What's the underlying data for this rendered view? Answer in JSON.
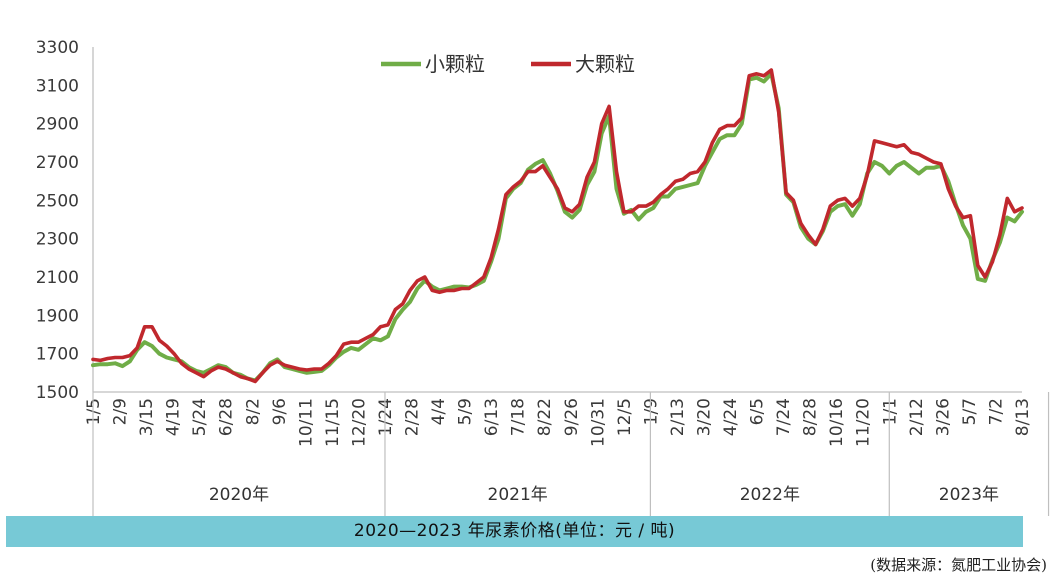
{
  "caption": "2020—2023 年尿素价格(单位：元 / 吨)",
  "source": "(数据来源：氮肥工业协会)",
  "chart_data": {
    "type": "line",
    "ylim": [
      1500,
      3300
    ],
    "yticks": [
      1500,
      1700,
      1900,
      2100,
      2300,
      2500,
      2700,
      2900,
      3100,
      3300
    ],
    "grid": false,
    "legend_position": "top",
    "x_tick_labels": [
      "1/5",
      "2/9",
      "3/15",
      "4/19",
      "5/24",
      "6/28",
      "8/2",
      "9/6",
      "10/11",
      "11/15",
      "12/20",
      "1/24",
      "2/28",
      "4/4",
      "5/9",
      "6/13",
      "7/18",
      "8/22",
      "9/26",
      "10/31",
      "12/5",
      "1/9",
      "2/13",
      "3/20",
      "4/24",
      "6/5",
      "7/24",
      "8/28",
      "10/16",
      "11/20",
      "1/1",
      "2/12",
      "3/26",
      "5/7",
      "7/2",
      "8/13"
    ],
    "year_groups": [
      {
        "label": "2020年"
      },
      {
        "label": "2021年"
      },
      {
        "label": "2022年"
      },
      {
        "label": "2023年"
      }
    ],
    "series": [
      {
        "name": "小颗粒",
        "color": "#70ad47",
        "values": [
          1640,
          1645,
          1645,
          1650,
          1635,
          1660,
          1720,
          1760,
          1740,
          1700,
          1680,
          1670,
          1660,
          1630,
          1610,
          1600,
          1620,
          1640,
          1630,
          1600,
          1590,
          1570,
          1560,
          1600,
          1650,
          1670,
          1630,
          1620,
          1610,
          1600,
          1605,
          1610,
          1640,
          1680,
          1710,
          1730,
          1720,
          1750,
          1780,
          1770,
          1790,
          1880,
          1930,
          1970,
          2040,
          2080,
          2050,
          2030,
          2040,
          2050,
          2050,
          2045,
          2060,
          2080,
          2180,
          2300,
          2510,
          2560,
          2590,
          2660,
          2690,
          2710,
          2640,
          2550,
          2440,
          2410,
          2450,
          2580,
          2650,
          2850,
          2940,
          2560,
          2430,
          2450,
          2400,
          2440,
          2460,
          2520,
          2520,
          2560,
          2570,
          2580,
          2590,
          2680,
          2750,
          2820,
          2840,
          2840,
          2900,
          3130,
          3140,
          3120,
          3160,
          2980,
          2530,
          2490,
          2360,
          2300,
          2270,
          2340,
          2440,
          2470,
          2480,
          2420,
          2480,
          2640,
          2700,
          2680,
          2640,
          2680,
          2700,
          2670,
          2640,
          2670,
          2670,
          2680,
          2600,
          2480,
          2370,
          2300,
          2090,
          2080,
          2190,
          2280,
          2410,
          2390,
          2440
        ]
      },
      {
        "name": "大颗粒",
        "color": "#c0282d",
        "values": [
          1670,
          1665,
          1675,
          1680,
          1680,
          1690,
          1730,
          1840,
          1840,
          1770,
          1740,
          1700,
          1650,
          1620,
          1600,
          1580,
          1610,
          1630,
          1620,
          1600,
          1580,
          1570,
          1555,
          1600,
          1640,
          1660,
          1640,
          1630,
          1620,
          1615,
          1620,
          1620,
          1650,
          1690,
          1750,
          1760,
          1760,
          1780,
          1800,
          1840,
          1850,
          1930,
          1960,
          2030,
          2080,
          2100,
          2030,
          2020,
          2030,
          2030,
          2040,
          2040,
          2070,
          2100,
          2200,
          2350,
          2530,
          2570,
          2600,
          2650,
          2650,
          2680,
          2620,
          2560,
          2460,
          2440,
          2480,
          2620,
          2700,
          2900,
          2990,
          2650,
          2440,
          2440,
          2470,
          2470,
          2490,
          2530,
          2560,
          2600,
          2610,
          2640,
          2650,
          2700,
          2800,
          2870,
          2890,
          2890,
          2930,
          3150,
          3160,
          3150,
          3180,
          2960,
          2540,
          2500,
          2380,
          2320,
          2270,
          2350,
          2470,
          2500,
          2510,
          2470,
          2510,
          2630,
          2810,
          2800,
          2790,
          2780,
          2790,
          2750,
          2740,
          2720,
          2700,
          2690,
          2560,
          2470,
          2410,
          2420,
          2160,
          2100,
          2180,
          2320,
          2510,
          2440,
          2460
        ]
      }
    ]
  }
}
